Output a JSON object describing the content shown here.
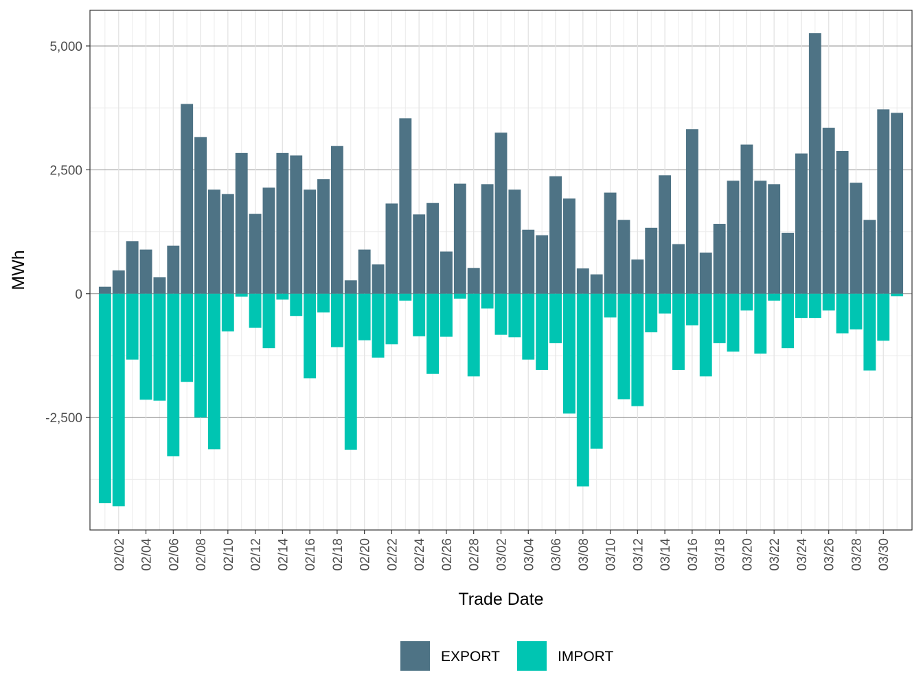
{
  "chart_data": {
    "type": "bar",
    "stacked": true,
    "xlabel": "Trade Date",
    "ylabel": "MWh",
    "ylim": [
      -4770,
      5720
    ],
    "y_ticks": [
      -2500,
      0,
      2500,
      5000
    ],
    "y_tick_labels": [
      "-2,500",
      "0",
      "2,500",
      "5,000"
    ],
    "x_tick_labels": [
      "02/02",
      "02/04",
      "02/06",
      "02/08",
      "02/10",
      "02/12",
      "02/14",
      "02/16",
      "02/18",
      "02/20",
      "02/22",
      "02/24",
      "02/26",
      "02/28",
      "03/02",
      "03/04",
      "03/06",
      "03/08",
      "03/10",
      "03/12",
      "03/14",
      "03/16",
      "03/18",
      "03/20",
      "03/22",
      "03/24",
      "03/26",
      "03/28",
      "03/30"
    ],
    "dates": [
      "02/01",
      "02/02",
      "02/03",
      "02/04",
      "02/05",
      "02/06",
      "02/07",
      "02/08",
      "02/09",
      "02/10",
      "02/11",
      "02/12",
      "02/13",
      "02/14",
      "02/15",
      "02/16",
      "02/17",
      "02/18",
      "02/19",
      "02/20",
      "02/21",
      "02/22",
      "02/23",
      "02/24",
      "02/25",
      "02/26",
      "02/27",
      "02/28",
      "03/01",
      "03/02",
      "03/03",
      "03/04",
      "03/05",
      "03/06",
      "03/07",
      "03/08",
      "03/09",
      "03/10",
      "03/11",
      "03/12",
      "03/13",
      "03/14",
      "03/15",
      "03/16",
      "03/17",
      "03/18",
      "03/19",
      "03/20",
      "03/21",
      "03/22",
      "03/23",
      "03/24",
      "03/25",
      "03/26",
      "03/27",
      "03/28",
      "03/29",
      "03/30",
      "03/31"
    ],
    "series": [
      {
        "name": "EXPORT",
        "color": "#4e7385",
        "values": [
          140,
          470,
          1060,
          890,
          330,
          970,
          3830,
          3160,
          2100,
          2010,
          2840,
          1610,
          2140,
          2840,
          2790,
          2100,
          2310,
          2980,
          270,
          890,
          590,
          1820,
          3540,
          1600,
          1830,
          850,
          2220,
          520,
          2210,
          3250,
          2100,
          1290,
          1180,
          2370,
          1920,
          510,
          390,
          2040,
          1490,
          690,
          1330,
          2390,
          1000,
          3320,
          830,
          1410,
          2280,
          3010,
          2280,
          2210,
          1230,
          2830,
          5260,
          3350,
          2880,
          2240,
          1490,
          3720,
          3650
        ],
        "value_note": ""
      },
      {
        "name": "IMPORT",
        "color": "#00c5b2",
        "values": [
          -4230,
          -4290,
          -1330,
          -2140,
          -2160,
          -3280,
          -1780,
          -2500,
          -3140,
          -760,
          -60,
          -690,
          -1100,
          -120,
          -450,
          -1710,
          -380,
          -1080,
          -3150,
          -940,
          -1290,
          -1020,
          -140,
          -860,
          -1620,
          -870,
          -100,
          -1670,
          -300,
          -830,
          -880,
          -1330,
          -1540,
          -1000,
          -2420,
          -3890,
          -3130,
          -480,
          -2130,
          -2270,
          -780,
          -400,
          -1540,
          -640,
          -1670,
          -1000,
          -1170,
          -340,
          -1210,
          -140,
          -1100,
          -490,
          -490,
          -340,
          -800,
          -720,
          -1550,
          -950,
          -50
        ]
      }
    ],
    "legend": {
      "position": "bottom",
      "entries": [
        "EXPORT",
        "IMPORT"
      ]
    },
    "grid": true
  }
}
